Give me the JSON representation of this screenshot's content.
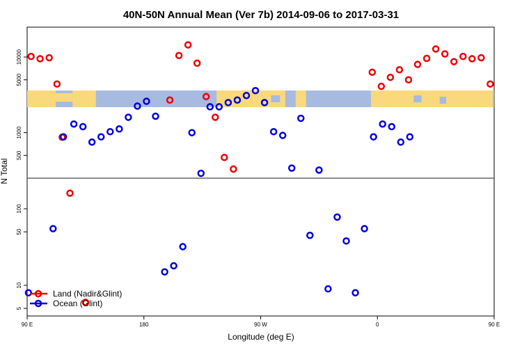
{
  "chart_data": {
    "type": "scatter",
    "title": "40N-50N Annual Mean (Ver 7b)   2014-09-06 to 2017-03-31",
    "xlabel": "Longitude (deg E)",
    "ylabel": "N Total",
    "x_scale": "longitude, centered on 0 (Greenwich)",
    "x_range": [
      90,
      450
    ],
    "x_ticks": [
      {
        "lon": 90,
        "label": "90 E"
      },
      {
        "lon": 180,
        "label": "180"
      },
      {
        "lon": 270,
        "label": "90 W"
      },
      {
        "lon": 360,
        "label": "0"
      },
      {
        "lon": 450,
        "label": "90 E"
      },
      {
        "lon": 540,
        "label": "180"
      }
    ],
    "y_scale": "log, broken into two panels",
    "upper_panel": {
      "ylim": [
        250,
        25000
      ],
      "ticks": [
        {
          "v": 500,
          "label": "500"
        },
        {
          "v": 1000,
          "label": "1000"
        },
        {
          "v": 5000,
          "label": "5000"
        },
        {
          "v": 10000,
          "label": "10000"
        }
      ],
      "map_strip": "world map 40N-50N"
    },
    "lower_panel": {
      "ylim": [
        4,
        250
      ],
      "ticks": [
        {
          "v": 5,
          "label": "5"
        },
        {
          "v": 10,
          "label": "10"
        },
        {
          "v": 50,
          "label": "50"
        },
        {
          "v": 100,
          "label": "100"
        }
      ]
    },
    "legend": {
      "placement": "bottom-left",
      "entries": [
        {
          "label": "Land (Nadir&Glint)",
          "color": "#ee0000"
        },
        {
          "label": "Ocean (Glint)",
          "color": "#0000dd"
        }
      ]
    },
    "series": [
      {
        "name": "Land (Nadir&Glint)",
        "color": "#ee0000",
        "points": [
          {
            "x": 93,
            "y": 10200
          },
          {
            "x": 100,
            "y": 9500
          },
          {
            "x": 107,
            "y": 9800
          },
          {
            "x": 113,
            "y": 4400
          },
          {
            "x": 117,
            "y": 870
          },
          {
            "x": 123,
            "y": 160
          },
          {
            "x": 135,
            "y": 6
          },
          {
            "x": 200,
            "y": 2700
          },
          {
            "x": 207,
            "y": 10500
          },
          {
            "x": 214,
            "y": 14500
          },
          {
            "x": 221,
            "y": 8300
          },
          {
            "x": 228,
            "y": 3000
          },
          {
            "x": 235,
            "y": 1600
          },
          {
            "x": 242,
            "y": 470
          },
          {
            "x": 249,
            "y": 330
          },
          {
            "x": 356,
            "y": 6300
          },
          {
            "x": 363,
            "y": 4100
          },
          {
            "x": 370,
            "y": 5400
          },
          {
            "x": 377,
            "y": 6800
          },
          {
            "x": 384,
            "y": 5000
          },
          {
            "x": 391,
            "y": 8000
          },
          {
            "x": 398,
            "y": 9600
          },
          {
            "x": 405,
            "y": 12800
          },
          {
            "x": 412,
            "y": 11000
          },
          {
            "x": 419,
            "y": 8700
          },
          {
            "x": 426,
            "y": 10200
          },
          {
            "x": 433,
            "y": 9500
          },
          {
            "x": 440,
            "y": 9800
          },
          {
            "x": 447,
            "y": 4400
          }
        ]
      },
      {
        "name": "Ocean (Glint)",
        "color": "#0000dd",
        "points": [
          {
            "x": 91,
            "y": 8
          },
          {
            "x": 110,
            "y": 55
          },
          {
            "x": 118,
            "y": 880
          },
          {
            "x": 126,
            "y": 1300
          },
          {
            "x": 133,
            "y": 1200
          },
          {
            "x": 140,
            "y": 750
          },
          {
            "x": 147,
            "y": 880
          },
          {
            "x": 154,
            "y": 1030
          },
          {
            "x": 161,
            "y": 1120
          },
          {
            "x": 168,
            "y": 1600
          },
          {
            "x": 175,
            "y": 2250
          },
          {
            "x": 182,
            "y": 2600
          },
          {
            "x": 189,
            "y": 1650
          },
          {
            "x": 196,
            "y": 15
          },
          {
            "x": 203,
            "y": 18
          },
          {
            "x": 210,
            "y": 32
          },
          {
            "x": 217,
            "y": 1000
          },
          {
            "x": 224,
            "y": 290
          },
          {
            "x": 231,
            "y": 2200
          },
          {
            "x": 238,
            "y": 2200
          },
          {
            "x": 245,
            "y": 2500
          },
          {
            "x": 252,
            "y": 2700
          },
          {
            "x": 259,
            "y": 3100
          },
          {
            "x": 266,
            "y": 3600
          },
          {
            "x": 273,
            "y": 2500
          },
          {
            "x": 280,
            "y": 1030
          },
          {
            "x": 287,
            "y": 920
          },
          {
            "x": 294,
            "y": 340
          },
          {
            "x": 301,
            "y": 1550
          },
          {
            "x": 308,
            "y": 45
          },
          {
            "x": 315,
            "y": 320
          },
          {
            "x": 322,
            "y": 9
          },
          {
            "x": 329,
            "y": 78
          },
          {
            "x": 336,
            "y": 38
          },
          {
            "x": 343,
            "y": 8
          },
          {
            "x": 350,
            "y": 55
          },
          {
            "x": 357,
            "y": 880
          },
          {
            "x": 364,
            "y": 1300
          },
          {
            "x": 371,
            "y": 1200
          },
          {
            "x": 378,
            "y": 750
          },
          {
            "x": 385,
            "y": 880
          }
        ]
      }
    ]
  }
}
